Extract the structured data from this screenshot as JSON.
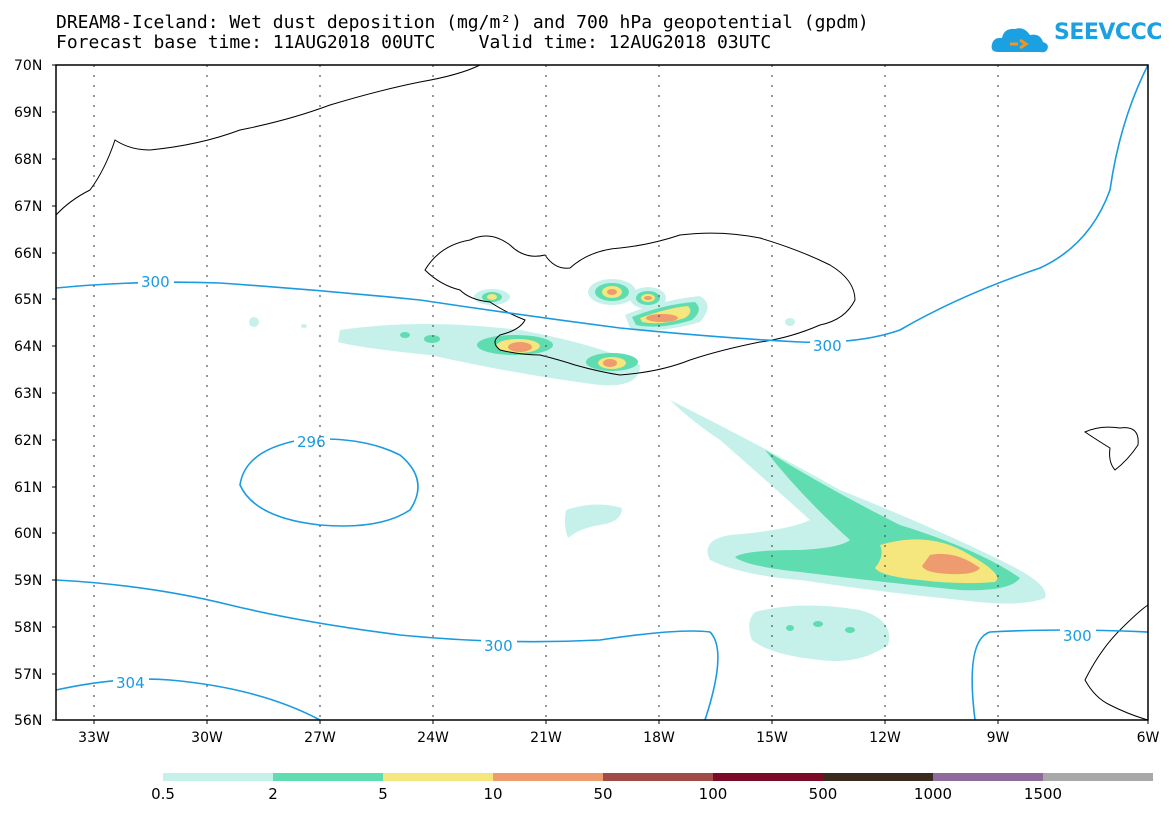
{
  "header": {
    "line1": "DREAM8-Iceland: Wet dust deposition (mg/m²) and 700 hPa geopotential (gpdm)",
    "line2": "Forecast base time: 11AUG2018 00UTC    Valid time: 12AUG2018 03UTC",
    "logo_text": "SEEVCCC"
  },
  "latitudes": [
    "70N",
    "69N",
    "68N",
    "67N",
    "66N",
    "65N",
    "64N",
    "63N",
    "62N",
    "61N",
    "60N",
    "59N",
    "58N",
    "57N",
    "56N"
  ],
  "longitudes": [
    "33W",
    "30W",
    "27W",
    "24W",
    "21W",
    "18W",
    "15W",
    "12W",
    "9W",
    "6W"
  ],
  "contour_labels": [
    "300",
    "300",
    "296",
    "300",
    "300",
    "304"
  ],
  "colorbar": {
    "labels": [
      "0.5",
      "2",
      "5",
      "10",
      "50",
      "100",
      "500",
      "1000",
      "1500"
    ],
    "colors": [
      "#c6f1ea",
      "#5fdcb0",
      "#f5e67d",
      "#ee9b70",
      "#a04b46",
      "#7a0a26",
      "#3b2a1e",
      "#8f6b9b",
      "#a8a8a8"
    ]
  },
  "colors": {
    "contour": "#1a9be0"
  }
}
